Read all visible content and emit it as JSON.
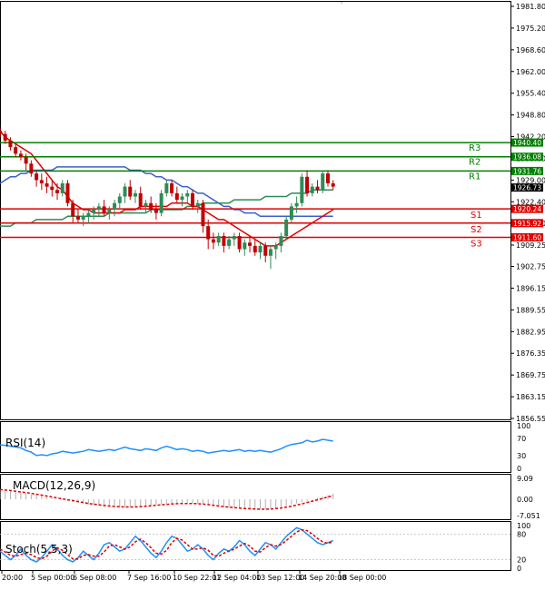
{
  "chart_data": {
    "type": "candlestick",
    "title": "",
    "x_tick_labels": [
      "20:00",
      "5 Sep 00:00",
      "6 Sep 08:00",
      "7 Sep 16:00",
      "10 Sep 22:01",
      "12 Sep 04:00",
      "13 Sep 12:00",
      "14 Sep 20:00",
      "18 Sep 00:00"
    ],
    "y_tick_labels": [
      "1981.80",
      "1975.20",
      "1968.60",
      "1962.00",
      "1955.40",
      "1948.80",
      "1942.20",
      "1935.60",
      "1929.00",
      "1922.40",
      "1915.80",
      "1909.25",
      "1902.75",
      "1896.15",
      "1889.55",
      "1882.95",
      "1876.35",
      "1869.75",
      "1863.15",
      "1856.55"
    ],
    "ylim": [
      1856.55,
      1981.8
    ],
    "grid": false,
    "current_price": "1926.73",
    "levels": [
      {
        "label": "R3",
        "value": "1940.40",
        "color": "#008000"
      },
      {
        "label": "R2",
        "value": "1936.08",
        "color": "#008000"
      },
      {
        "label": "R1",
        "value": "1931.76",
        "color": "#008000"
      },
      {
        "label": "S1",
        "value": "1920.24",
        "color": "#e00000"
      },
      {
        "label": "S2",
        "value": "1915.92",
        "color": "#e00000"
      },
      {
        "label": "S3",
        "value": "1911.60",
        "color": "#e00000"
      }
    ],
    "candles": [
      [
        1944,
        1945,
        1942,
        1943
      ],
      [
        1943,
        1944,
        1940,
        1941
      ],
      [
        1941,
        1942,
        1938,
        1939
      ],
      [
        1939,
        1940,
        1936,
        1937
      ],
      [
        1937,
        1938,
        1935,
        1936
      ],
      [
        1936,
        1937,
        1932,
        1934
      ],
      [
        1934,
        1935,
        1930,
        1931
      ],
      [
        1931,
        1932,
        1927,
        1929
      ],
      [
        1929,
        1931,
        1926,
        1928
      ],
      [
        1928,
        1930,
        1925,
        1927
      ],
      [
        1927,
        1929,
        1924,
        1926
      ],
      [
        1926,
        1928,
        1923,
        1925
      ],
      [
        1925,
        1929,
        1924,
        1928
      ],
      [
        1928,
        1929,
        1921,
        1922
      ],
      [
        1922,
        1923,
        1916,
        1918
      ],
      [
        1918,
        1920,
        1916,
        1917
      ],
      [
        1917,
        1919,
        1915,
        1918
      ],
      [
        1918,
        1920,
        1916,
        1919
      ],
      [
        1919,
        1921,
        1917,
        1920
      ],
      [
        1920,
        1922,
        1918,
        1921
      ],
      [
        1921,
        1923,
        1918,
        1919
      ],
      [
        1919,
        1921,
        1917,
        1920
      ],
      [
        1920,
        1923,
        1918,
        1922
      ],
      [
        1922,
        1925,
        1920,
        1924
      ],
      [
        1924,
        1928,
        1922,
        1927
      ],
      [
        1927,
        1929,
        1923,
        1924
      ],
      [
        1924,
        1926,
        1922,
        1925
      ],
      [
        1925,
        1927,
        1920,
        1921
      ],
      [
        1921,
        1923,
        1919,
        1922
      ],
      [
        1922,
        1924,
        1919,
        1920
      ],
      [
        1920,
        1922,
        1917,
        1919
      ],
      [
        1919,
        1926,
        1918,
        1925
      ],
      [
        1925,
        1929,
        1924,
        1928
      ],
      [
        1928,
        1929,
        1924,
        1925
      ],
      [
        1925,
        1927,
        1922,
        1923
      ],
      [
        1923,
        1925,
        1921,
        1924
      ],
      [
        1924,
        1926,
        1922,
        1925
      ],
      [
        1925,
        1926,
        1920,
        1921
      ],
      [
        1921,
        1923,
        1919,
        1922
      ],
      [
        1922,
        1923,
        1913,
        1915
      ],
      [
        1915,
        1917,
        1908,
        1911
      ],
      [
        1911,
        1913,
        1908,
        1910
      ],
      [
        1910,
        1913,
        1909,
        1912
      ],
      [
        1912,
        1913,
        1907,
        1909
      ],
      [
        1909,
        1912,
        1908,
        1911
      ],
      [
        1911,
        1913,
        1909,
        1912
      ],
      [
        1912,
        1913,
        1907,
        1908
      ],
      [
        1908,
        1911,
        1906,
        1910
      ],
      [
        1910,
        1912,
        1907,
        1909
      ],
      [
        1909,
        1911,
        1906,
        1907
      ],
      [
        1907,
        1910,
        1905,
        1909
      ],
      [
        1909,
        1910,
        1904,
        1906
      ],
      [
        1906,
        1909,
        1902,
        1908
      ],
      [
        1908,
        1910,
        1905,
        1909
      ],
      [
        1909,
        1913,
        1907,
        1912
      ],
      [
        1912,
        1918,
        1911,
        1917
      ],
      [
        1917,
        1922,
        1916,
        1921
      ],
      [
        1921,
        1924,
        1919,
        1922
      ],
      [
        1922,
        1931,
        1921,
        1930
      ],
      [
        1930,
        1932,
        1924,
        1925
      ],
      [
        1925,
        1928,
        1924,
        1927
      ],
      [
        1927,
        1929,
        1925,
        1926
      ],
      [
        1926,
        1932,
        1925,
        1931
      ],
      [
        1931,
        1932,
        1927,
        1928
      ],
      [
        1928,
        1929,
        1926,
        1927
      ]
    ],
    "ma_red": [
      1944,
      1942,
      1941,
      1940,
      1939,
      1938,
      1937,
      1935,
      1933,
      1931,
      1929,
      1927,
      1926,
      1924,
      1922,
      1921,
      1920,
      1920,
      1919,
      1919,
      1919,
      1919,
      1919,
      1919,
      1920,
      1920,
      1920,
      1921,
      1921,
      1921,
      1921,
      1921,
      1921,
      1922,
      1922,
      1922,
      1922,
      1921,
      1921,
      1920,
      1919,
      1918,
      1917,
      1917,
      1916,
      1915,
      1914,
      1913,
      1912,
      1911,
      1910,
      1909,
      1909,
      1909,
      1910,
      1911,
      1912,
      1913,
      1914,
      1915,
      1916,
      1917,
      1918,
      1919,
      1920
    ],
    "ma_blue": [
      1928,
      1929,
      1930,
      1930,
      1931,
      1931,
      1932,
      1932,
      1932,
      1932,
      1932,
      1933,
      1933,
      1933,
      1933,
      1933,
      1933,
      1933,
      1933,
      1933,
      1933,
      1933,
      1933,
      1933,
      1933,
      1932,
      1932,
      1932,
      1931,
      1931,
      1930,
      1930,
      1929,
      1929,
      1928,
      1927,
      1927,
      1926,
      1925,
      1925,
      1924,
      1923,
      1922,
      1921,
      1921,
      1920,
      1920,
      1919,
      1919,
      1919,
      1918,
      1918,
      1918,
      1918,
      1918,
      1918,
      1918,
      1918,
      1918,
      1918,
      1918,
      1918,
      1918,
      1918,
      1918
    ],
    "ma_green": [
      1915,
      1915,
      1915,
      1916,
      1916,
      1916,
      1916,
      1917,
      1917,
      1917,
      1917,
      1917,
      1917,
      1918,
      1918,
      1918,
      1918,
      1918,
      1918,
      1918,
      1918,
      1919,
      1919,
      1919,
      1919,
      1919,
      1919,
      1919,
      1919,
      1920,
      1920,
      1920,
      1920,
      1920,
      1920,
      1920,
      1921,
      1921,
      1921,
      1922,
      1922,
      1922,
      1922,
      1922,
      1922,
      1923,
      1923,
      1923,
      1923,
      1923,
      1923,
      1924,
      1924,
      1924,
      1924,
      1924,
      1925,
      1925,
      1925,
      1925,
      1926,
      1926,
      1926,
      1926,
      1926
    ],
    "rsi": {
      "label": "RSI(14)",
      "ticks": [
        "100",
        "70",
        "30",
        "0"
      ],
      "ylim": [
        0,
        100
      ],
      "values": [
        55,
        54,
        52,
        50,
        48,
        42,
        38,
        30,
        32,
        30,
        34,
        36,
        40,
        38,
        36,
        38,
        40,
        44,
        42,
        40,
        42,
        44,
        42,
        46,
        50,
        46,
        44,
        42,
        46,
        44,
        42,
        48,
        52,
        48,
        44,
        46,
        44,
        40,
        42,
        40,
        36,
        38,
        40,
        42,
        40,
        42,
        44,
        40,
        42,
        40,
        42,
        40,
        38,
        42,
        46,
        52,
        56,
        58,
        60,
        66,
        62,
        64,
        68,
        66,
        64
      ]
    },
    "macd": {
      "label": "MACD(12,26,9)",
      "ticks": [
        "9.09",
        "0.00",
        "-7.051"
      ],
      "ylim": [
        -7.051,
        9.09
      ],
      "histogram": [
        4,
        3.8,
        3.5,
        3.2,
        2.9,
        2.6,
        2.2,
        1.8,
        1.4,
        1,
        0.6,
        0.2,
        -0.2,
        -0.6,
        -1,
        -1.4,
        -1.8,
        -2.2,
        -2.5,
        -2.8,
        -3,
        -3.2,
        -3.3,
        -3.4,
        -3.4,
        -3.3,
        -3.2,
        -3,
        -2.8,
        -2.6,
        -2.4,
        -2.2,
        -2,
        -1.8,
        -1.6,
        -1.6,
        -1.7,
        -1.8,
        -2,
        -2.2,
        -2.5,
        -2.8,
        -3.1,
        -3.4,
        -3.6,
        -3.8,
        -4,
        -4.2,
        -4.3,
        -4.4,
        -4.4,
        -4.3,
        -4.1,
        -3.8,
        -3.4,
        -2.9,
        -2.4,
        -1.8,
        -1.2,
        -0.6,
        0,
        0.6,
        1.2,
        1.8,
        2.4
      ],
      "signal": [
        4.2,
        4,
        3.8,
        3.5,
        3.2,
        2.9,
        2.6,
        2.2,
        1.8,
        1.4,
        1,
        0.6,
        0.2,
        -0.2,
        -0.6,
        -1,
        -1.4,
        -1.8,
        -2.1,
        -2.4,
        -2.7,
        -2.9,
        -3.1,
        -3.2,
        -3.3,
        -3.3,
        -3.3,
        -3.2,
        -3,
        -2.8,
        -2.6,
        -2.4,
        -2.2,
        -2,
        -1.9,
        -1.8,
        -1.8,
        -1.8,
        -1.9,
        -2.1,
        -2.3,
        -2.6,
        -2.9,
        -3.2,
        -3.4,
        -3.6,
        -3.8,
        -4,
        -4.1,
        -4.2,
        -4.3,
        -4.3,
        -4.2,
        -4,
        -3.8,
        -3.4,
        -3,
        -2.5,
        -2,
        -1.4,
        -0.8,
        -0.2,
        0.4,
        1,
        1.6
      ]
    },
    "stoch": {
      "label": "Stoch(5,5,3)",
      "ticks": [
        "100",
        "80",
        "20",
        "0"
      ],
      "ylim": [
        0,
        100
      ],
      "k": [
        40,
        30,
        20,
        30,
        45,
        30,
        20,
        15,
        25,
        40,
        55,
        45,
        30,
        20,
        15,
        25,
        40,
        30,
        20,
        35,
        55,
        60,
        50,
        40,
        45,
        60,
        75,
        65,
        50,
        35,
        25,
        40,
        60,
        75,
        70,
        55,
        40,
        45,
        55,
        45,
        30,
        20,
        35,
        45,
        40,
        50,
        65,
        55,
        40,
        30,
        45,
        60,
        55,
        45,
        60,
        75,
        85,
        95,
        90,
        80,
        70,
        60,
        55,
        60,
        65
      ],
      "d": [
        45,
        38,
        30,
        28,
        32,
        35,
        32,
        25,
        22,
        28,
        40,
        48,
        42,
        32,
        22,
        22,
        30,
        32,
        28,
        28,
        38,
        52,
        55,
        50,
        45,
        50,
        62,
        68,
        60,
        48,
        35,
        33,
        42,
        60,
        70,
        66,
        55,
        45,
        45,
        48,
        42,
        30,
        28,
        35,
        40,
        45,
        52,
        58,
        52,
        40,
        38,
        48,
        55,
        52,
        55,
        65,
        75,
        85,
        90,
        88,
        80,
        70,
        62,
        58,
        62
      ]
    }
  }
}
